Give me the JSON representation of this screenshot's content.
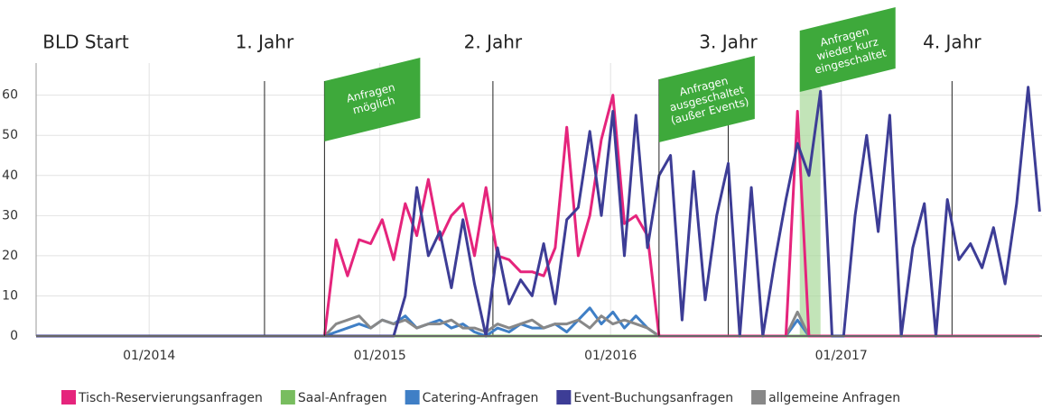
{
  "chart_data": {
    "type": "line",
    "x": [
      2013.51,
      2014.76,
      2014.81,
      2014.86,
      2014.91,
      2014.96,
      2015.01,
      2015.06,
      2015.11,
      2015.16,
      2015.21,
      2015.26,
      2015.31,
      2015.36,
      2015.41,
      2015.46,
      2015.51,
      2015.56,
      2015.61,
      2015.66,
      2015.71,
      2015.76,
      2015.81,
      2015.86,
      2015.91,
      2015.96,
      2016.01,
      2016.06,
      2016.11,
      2016.16,
      2016.21,
      2016.26,
      2016.31,
      2016.36,
      2016.41,
      2016.46,
      2016.51,
      2016.56,
      2016.61,
      2016.66,
      2016.71,
      2016.76,
      2016.81,
      2016.86,
      2016.91,
      2016.96,
      2017.01,
      2017.06,
      2017.11,
      2017.16,
      2017.21,
      2017.26,
      2017.31,
      2017.36,
      2017.41,
      2017.46,
      2017.51,
      2017.56,
      2017.61,
      2017.66,
      2017.71,
      2017.76,
      2017.81,
      2017.86
    ],
    "xlim": [
      2013.51,
      2017.87
    ],
    "xticks": [
      {
        "value": 2014,
        "label": "01/2014"
      },
      {
        "value": 2015,
        "label": "01/2015"
      },
      {
        "value": 2016,
        "label": "01/2016"
      },
      {
        "value": 2017,
        "label": "01/2017"
      }
    ],
    "ylim": [
      0,
      68
    ],
    "yticks": [
      0,
      10,
      20,
      30,
      40,
      50,
      60
    ],
    "grid": true,
    "series": [
      {
        "name": "Tisch-Reservierungsanfragen",
        "color": "#e5247c",
        "values": [
          0,
          0,
          24,
          15,
          24,
          23,
          29,
          19,
          33,
          25,
          39,
          24,
          30,
          33,
          20,
          37,
          20,
          19,
          16,
          16,
          15,
          22,
          52,
          20,
          30,
          49,
          60,
          28,
          30,
          25,
          0,
          0,
          0,
          0,
          0,
          0,
          0,
          0,
          0,
          0,
          0,
          0,
          56,
          0,
          0,
          0,
          0,
          0,
          0,
          0,
          0,
          0,
          0,
          0,
          0,
          0,
          0,
          0,
          0,
          0,
          0,
          0,
          0,
          0
        ]
      },
      {
        "name": "Saal-Anfragen",
        "color": "#78bd5f",
        "values": [
          0,
          0,
          0,
          0,
          0,
          0,
          0,
          0,
          0,
          0,
          0,
          0,
          0,
          0,
          0,
          0,
          0,
          0,
          0,
          0,
          0,
          0,
          0,
          0,
          0,
          0,
          0,
          0,
          0,
          0,
          0,
          0,
          0,
          0,
          0,
          0,
          0,
          0,
          0,
          0,
          0,
          0,
          0,
          0,
          0,
          0,
          0,
          0,
          0,
          0,
          0,
          0,
          0,
          0,
          0,
          0,
          0,
          0,
          0,
          0,
          0,
          0,
          0,
          0
        ]
      },
      {
        "name": "Catering-Anfragen",
        "color": "#3f7fc6",
        "values": [
          0,
          0,
          1,
          2,
          3,
          2,
          4,
          3,
          5,
          2,
          3,
          4,
          2,
          3,
          1,
          0,
          2,
          1,
          3,
          2,
          2,
          3,
          1,
          4,
          7,
          3,
          6,
          2,
          5,
          2,
          0,
          0,
          0,
          0,
          0,
          0,
          0,
          0,
          0,
          0,
          0,
          0,
          4,
          0,
          0,
          0,
          0,
          0,
          0,
          0,
          0,
          0,
          0,
          0,
          0,
          0,
          0,
          0,
          0,
          0,
          0,
          0,
          0,
          0
        ]
      },
      {
        "name": "Event-Buchungsanfragen",
        "color": "#3d3d96",
        "values": [
          0,
          0,
          0,
          0,
          0,
          0,
          0,
          0,
          10,
          37,
          20,
          26,
          12,
          29,
          13,
          0,
          22,
          8,
          14,
          10,
          23,
          8,
          29,
          32,
          51,
          30,
          56,
          20,
          55,
          22,
          40,
          45,
          4,
          41,
          9,
          30,
          43,
          0,
          37,
          0,
          18,
          34,
          48,
          40,
          61,
          0,
          0,
          30,
          50,
          26,
          55,
          0,
          22,
          33,
          0,
          34,
          19,
          23,
          17,
          27,
          13,
          33,
          62,
          31
        ]
      },
      {
        "name": "allgemeine Anfragen",
        "color": "#888888",
        "values": [
          0,
          0,
          3,
          4,
          5,
          2,
          4,
          3,
          4,
          2,
          3,
          3,
          4,
          2,
          2,
          1,
          3,
          2,
          3,
          4,
          2,
          3,
          3,
          4,
          2,
          5,
          3,
          4,
          3,
          2,
          0,
          0,
          0,
          0,
          0,
          0,
          0,
          0,
          0,
          0,
          0,
          0,
          6,
          0,
          0,
          0,
          0,
          0,
          0,
          0,
          0,
          0,
          0,
          0,
          0,
          0,
          0,
          0,
          0,
          0,
          0,
          0,
          0,
          0
        ]
      }
    ],
    "start_label": "BLD Start",
    "periods": [
      {
        "label": "1. Jahr",
        "x": 2014.5
      },
      {
        "label": "2. Jahr",
        "x": 2015.49
      },
      {
        "label": "3. Jahr",
        "x": 2016.51
      },
      {
        "label": "4. Jahr",
        "x": 2017.48
      }
    ],
    "flags": [
      {
        "lines": [
          "Anfragen",
          "möglich"
        ],
        "x": 2014.76
      },
      {
        "lines": [
          "Anfragen",
          "ausgeschaltet",
          "(außer Events)"
        ],
        "x": 2016.21
      },
      {
        "lines": [
          "Anfragen",
          "wieder kurz",
          "eingeschaltet"
        ],
        "x": 2016.82,
        "band": [
          2016.82,
          2016.91
        ]
      }
    ]
  }
}
